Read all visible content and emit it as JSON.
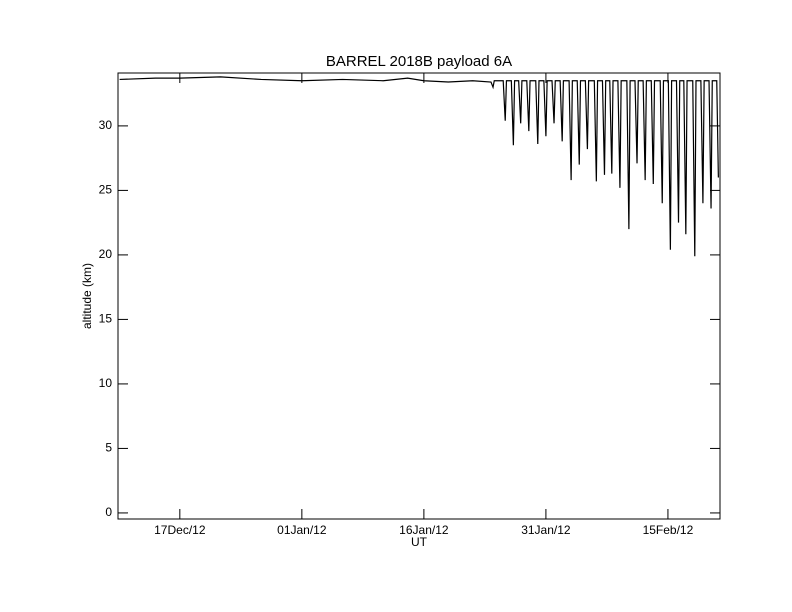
{
  "chart_data": {
    "type": "line",
    "title": "BARREL 2018B payload 6A",
    "xlabel": "UT",
    "ylabel": "altitude (km)",
    "x": [
      -7.4,
      -3,
      0,
      5,
      10,
      15,
      20,
      25,
      28,
      30,
      33,
      36,
      38.25,
      38.5,
      38.65,
      39.75,
      40,
      40.15,
      40.75,
      41,
      41.15,
      41.65,
      41.9,
      42.05,
      42.65,
      42.9,
      43.05,
      43.75,
      44,
      44.15,
      44.75,
      45,
      45.15,
      45.75,
      46,
      46.15,
      46.75,
      47,
      47.15,
      47.85,
      48.1,
      48.25,
      48.85,
      49.1,
      49.25,
      49.85,
      50.1,
      50.25,
      50.95,
      51.2,
      51.35,
      51.95,
      52.2,
      52.35,
      52.85,
      53.1,
      53.25,
      53.85,
      54.1,
      54.25,
      54.95,
      55.2,
      55.35,
      55.95,
      56.2,
      56.35,
      56.95,
      57.2,
      57.35,
      57.95,
      58.2,
      58.35,
      59.05,
      59.3,
      59.45,
      60.05,
      60.3,
      60.45,
      61.05,
      61.3,
      61.45,
      61.95,
      62.2,
      62.35,
      63.05,
      63.3,
      63.45,
      64.05,
      64.3,
      64.45,
      65.05,
      65.3,
      65.45,
      66.0,
      66.2
    ],
    "values": [
      33.6,
      33.7,
      33.7,
      33.8,
      33.6,
      33.5,
      33.6,
      33.5,
      33.7,
      33.5,
      33.4,
      33.5,
      33.4,
      33.0,
      33.5,
      33.5,
      30.4,
      33.5,
      33.5,
      28.5,
      33.5,
      33.5,
      30.2,
      33.5,
      33.5,
      29.6,
      33.5,
      33.5,
      28.6,
      33.5,
      33.5,
      29.2,
      33.5,
      33.5,
      30.2,
      33.5,
      33.5,
      28.8,
      33.5,
      33.5,
      25.8,
      33.5,
      33.5,
      27.0,
      33.5,
      33.5,
      28.2,
      33.5,
      33.5,
      25.7,
      33.5,
      33.5,
      26.2,
      33.5,
      33.5,
      26.3,
      33.5,
      33.5,
      25.2,
      33.5,
      33.5,
      22.0,
      33.5,
      33.5,
      27.1,
      33.5,
      33.5,
      25.8,
      33.5,
      33.5,
      25.5,
      33.5,
      33.5,
      24.0,
      33.5,
      33.5,
      20.4,
      33.5,
      33.5,
      22.5,
      33.5,
      33.5,
      21.6,
      33.5,
      33.5,
      19.9,
      33.5,
      33.5,
      24.0,
      33.5,
      33.5,
      23.6,
      33.5,
      33.5,
      26.0
    ],
    "color": "#000000",
    "xlim": [
      -7.6,
      66.4
    ],
    "xticks": [
      {
        "value": 0,
        "label": "17Dec/12"
      },
      {
        "value": 15,
        "label": "01Jan/12"
      },
      {
        "value": 30,
        "label": "16Jan/12"
      },
      {
        "value": 45,
        "label": "31Jan/12"
      },
      {
        "value": 60,
        "label": "15Feb/12"
      }
    ],
    "ylim": [
      -0.47,
      34.1
    ],
    "yticks": [
      0,
      5,
      10,
      15,
      20,
      25,
      30
    ]
  }
}
